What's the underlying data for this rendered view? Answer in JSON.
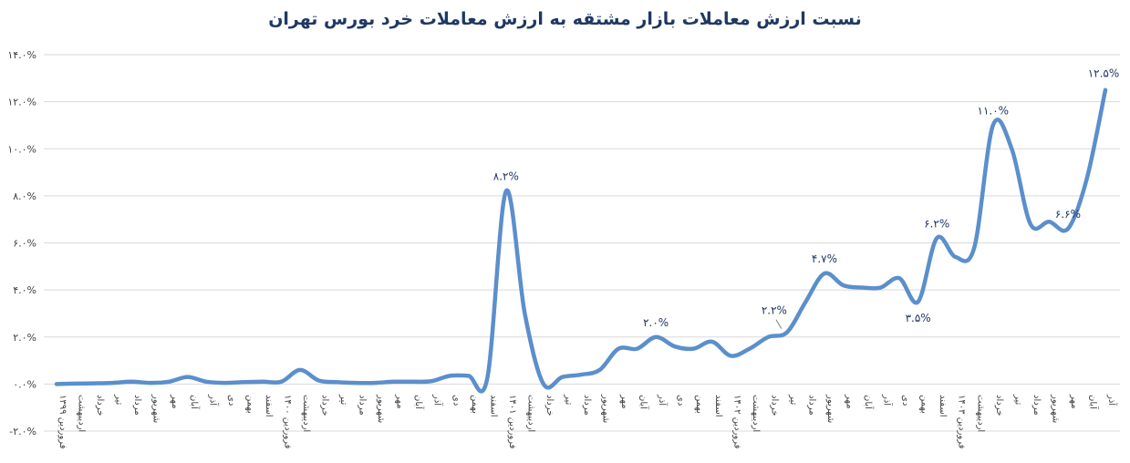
{
  "colors": {
    "line": "#5b8fcc",
    "grid": "#d9d9d9",
    "title": "#1f3864",
    "label": "#1f3864"
  },
  "chart_data": {
    "type": "line",
    "title": "نسبت ارزش معاملات بازار مشتقه به ارزش معاملات خرد بورس تهران",
    "xlabel": "",
    "ylabel": "",
    "ylim": [
      -2,
      14
    ],
    "yticks": [
      {
        "value": -2,
        "label": "-۲.۰%"
      },
      {
        "value": 0,
        "label": "۰.۰%"
      },
      {
        "value": 2,
        "label": "۲.۰%"
      },
      {
        "value": 4,
        "label": "۴.۰%"
      },
      {
        "value": 6,
        "label": "۶.۰%"
      },
      {
        "value": 8,
        "label": "۸.۰%"
      },
      {
        "value": 10,
        "label": "۱۰.۰%"
      },
      {
        "value": 12,
        "label": "۱۲.۰%"
      },
      {
        "value": 14,
        "label": "۱۴.۰%"
      }
    ],
    "grid": true,
    "legend": "none",
    "categories": [
      "فروردین ۱۳۹۹",
      "اردیبهشت",
      "خرداد",
      "تیر",
      "مرداد",
      "شهریور",
      "مهر",
      "آبان",
      "آذر",
      "دی",
      "بهمن",
      "اسفند",
      "فروردین ۱۴۰۰",
      "اردیبهشت",
      "خرداد",
      "تیر",
      "مرداد",
      "شهریور",
      "مهر",
      "آبان",
      "آذر",
      "دی",
      "بهمن",
      "اسفند",
      "فروردین ۱۴۰۱",
      "اردیبهشت",
      "خرداد",
      "تیر",
      "مرداد",
      "شهریور",
      "مهر",
      "آبان",
      "آذر",
      "دی",
      "بهمن",
      "اسفند",
      "فروردین ۱۴۰۲",
      "اردیبهشت",
      "خرداد",
      "تیر",
      "مرداد",
      "شهریور",
      "مهر",
      "آبان",
      "آذر",
      "دی",
      "بهمن",
      "اسفند",
      "فروردین ۱۴۰۳",
      "اردیبهشت",
      "خرداد",
      "تیر",
      "مرداد",
      "شهریور",
      "مهر",
      "آبان",
      "آذر"
    ],
    "values": [
      0.0,
      0.02,
      0.03,
      0.05,
      0.1,
      0.05,
      0.1,
      0.3,
      0.1,
      0.05,
      0.08,
      0.1,
      0.1,
      0.6,
      0.15,
      0.08,
      0.05,
      0.05,
      0.1,
      0.1,
      0.12,
      0.35,
      0.35,
      0.25,
      8.2,
      3.0,
      0.0,
      0.3,
      0.4,
      0.6,
      1.5,
      1.5,
      2.0,
      1.6,
      1.5,
      1.8,
      1.2,
      1.5,
      2.0,
      2.2,
      3.5,
      4.7,
      4.2,
      4.1,
      4.1,
      4.5,
      3.5,
      6.2,
      5.4,
      5.8,
      11.0,
      10.0,
      6.8,
      6.9,
      6.6,
      8.7,
      12.5
    ],
    "data_labels": [
      {
        "index": 24,
        "label": "۸.۲%",
        "pos": "above"
      },
      {
        "index": 32,
        "label": "۲.۰%",
        "pos": "above"
      },
      {
        "index": 39,
        "label": "۲.۲%",
        "pos": "above-left"
      },
      {
        "index": 41,
        "label": "۴.۷%",
        "pos": "above"
      },
      {
        "index": 46,
        "label": "۳.۵%",
        "pos": "below"
      },
      {
        "index": 47,
        "label": "۶.۲%",
        "pos": "above"
      },
      {
        "index": 50,
        "label": "۱۱.۰%",
        "pos": "above"
      },
      {
        "index": 54,
        "label": "۶.۶%",
        "pos": "above"
      },
      {
        "index": 56,
        "label": "۱۲.۵%",
        "pos": "above"
      }
    ]
  }
}
